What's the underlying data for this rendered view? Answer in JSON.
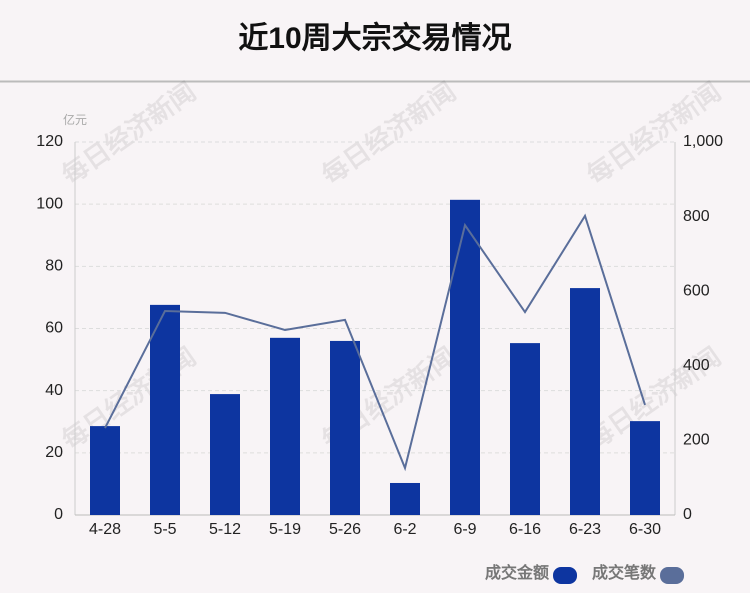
{
  "chart_data": {
    "type": "bar",
    "title": "近10周大宗交易情况",
    "y_unit": "亿元",
    "watermark": "每日经济新闻",
    "categories": [
      "4-28",
      "5-5",
      "5-12",
      "5-19",
      "5-26",
      "6-2",
      "6-9",
      "6-16",
      "6-23",
      "6-30"
    ],
    "series": [
      {
        "name": "成交金额",
        "type": "bar",
        "color": "#0d35a0",
        "values": [
          28.6,
          67.6,
          38.9,
          57.0,
          56.0,
          10.3,
          101.4,
          55.3,
          73.0,
          30.2
        ]
      },
      {
        "name": "成交笔数",
        "type": "line",
        "axis": "y2",
        "color": "#5a6e9a",
        "values": [
          233,
          547,
          542,
          496,
          523,
          126,
          777,
          544,
          802,
          295
        ]
      }
    ],
    "ylim": [
      0,
      120
    ],
    "yticks": [
      0,
      20,
      40,
      60,
      80,
      100,
      120
    ],
    "y2lim": [
      0,
      1000
    ],
    "y2ticks": [
      0,
      200,
      400,
      600,
      800,
      {
        "value": 1000,
        "label": "1,000"
      }
    ],
    "grid": true,
    "legend": "bottom-right"
  }
}
